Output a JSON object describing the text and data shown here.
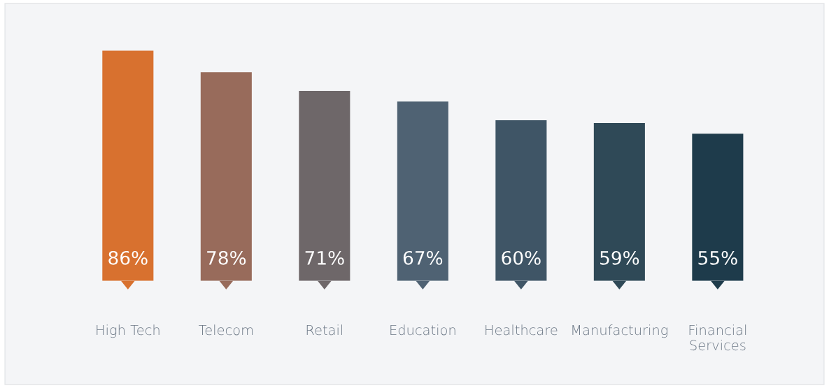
{
  "chart_data": {
    "type": "bar",
    "categories": [
      "High Tech",
      "Telecom",
      "Retail",
      "Education",
      "Healthcare",
      "Manufacturing",
      "Financial Services"
    ],
    "values": [
      86,
      78,
      71,
      67,
      60,
      59,
      55
    ],
    "colors": [
      "#d8712f",
      "#986b5b",
      "#6e6769",
      "#4f6273",
      "#3f5566",
      "#2f4957",
      "#1e3b4b"
    ],
    "value_labels": [
      "86%",
      "78%",
      "71%",
      "67%",
      "60%",
      "59%",
      "55%"
    ],
    "tick_labels": "x",
    "grid": false,
    "legend": false
  }
}
